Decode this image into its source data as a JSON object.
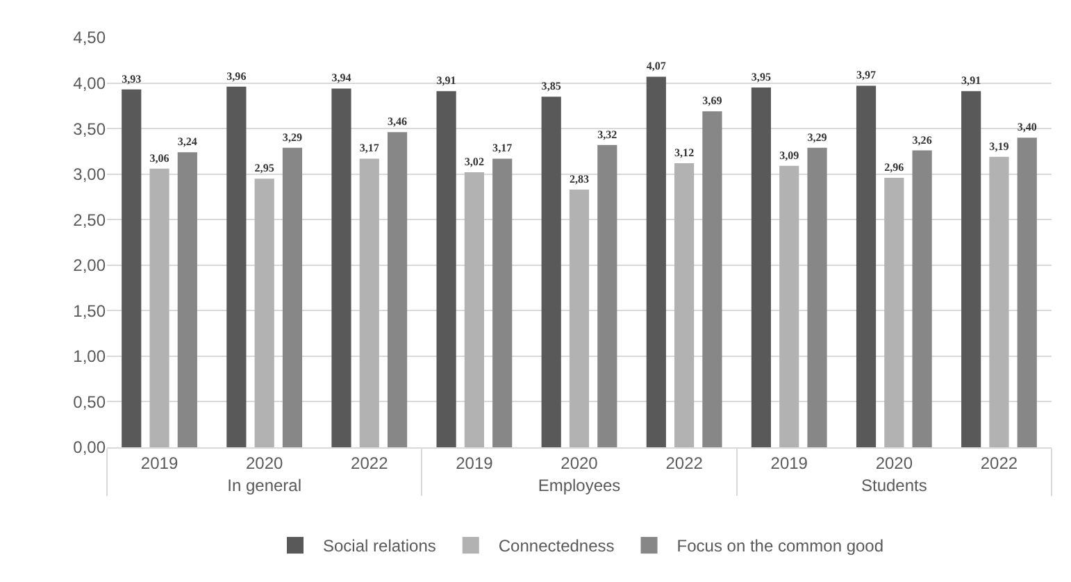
{
  "chart_data": {
    "type": "bar",
    "categories": [
      "2019",
      "2020",
      "2022",
      "2019",
      "2020",
      "2022",
      "2019",
      "2020",
      "2022"
    ],
    "annotations": [
      "In general",
      "Employees",
      "Students"
    ],
    "series": [
      {
        "name": "Social relations",
        "color": "#595959",
        "values": [
          3.93,
          3.96,
          3.94,
          3.91,
          3.85,
          4.07,
          3.95,
          3.97,
          3.91
        ],
        "value_labels": [
          "3,93",
          "3,96",
          "3,94",
          "3,91",
          "3,85",
          "4,07",
          "3,95",
          "3,97",
          "3,91"
        ]
      },
      {
        "name": "Connectedness",
        "color": "#b2b2b2",
        "values": [
          3.06,
          2.95,
          3.17,
          3.02,
          2.83,
          3.12,
          3.09,
          2.96,
          3.19
        ],
        "value_labels": [
          "3,06",
          "2,95",
          "3,17",
          "3,02",
          "2,83",
          "3,12",
          "3,09",
          "2,96",
          "3,19"
        ]
      },
      {
        "name": "Focus on the common good",
        "color": "#878787",
        "values": [
          3.24,
          3.29,
          3.46,
          3.17,
          3.32,
          3.69,
          3.29,
          3.26,
          3.4
        ],
        "value_labels": [
          "3,24",
          "3,29",
          "3,46",
          "3,17",
          "3,32",
          "3,69",
          "3,29",
          "3,26",
          "3,40"
        ]
      }
    ],
    "ylim": [
      0,
      4.5
    ],
    "yticks": [
      {
        "value": 0,
        "label": "0,00"
      },
      {
        "value": 0.5,
        "label": "0,50"
      },
      {
        "value": 1,
        "label": "1,00"
      },
      {
        "value": 1.5,
        "label": "1,50"
      },
      {
        "value": 2,
        "label": "2,00"
      },
      {
        "value": 2.5,
        "label": "2,50"
      },
      {
        "value": 3,
        "label": "3,00"
      },
      {
        "value": 3.5,
        "label": "3,50"
      },
      {
        "value": 4,
        "label": "4,00"
      },
      {
        "value": 4.5,
        "label": "4,50"
      }
    ],
    "grid": "y",
    "legend": "bottom"
  }
}
